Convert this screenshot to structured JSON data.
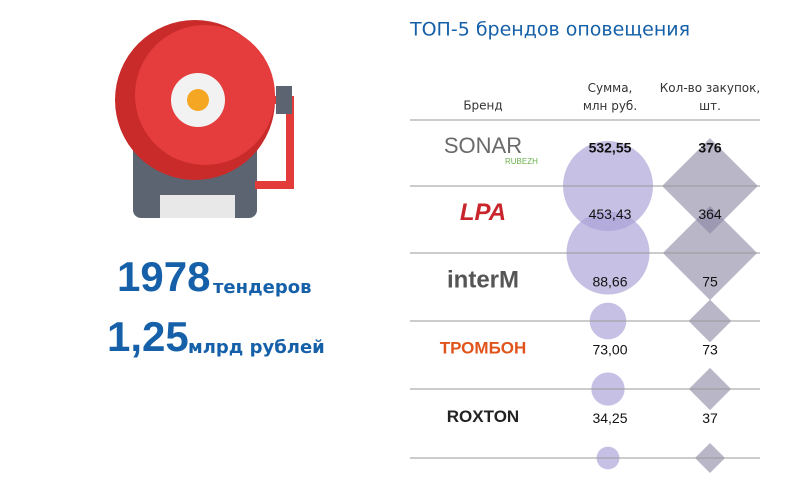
{
  "stats": {
    "tenders": {
      "number": "1978",
      "unit": "тендеров"
    },
    "amount": {
      "number": "1,25",
      "unit": "млрд рублей"
    }
  },
  "table": {
    "title": "ТОП-5 брендов оповещения",
    "headers": {
      "brand": "Бренд",
      "sum": "Сумма,\nмлн руб.",
      "count": "Кол-во закупок,\nшт."
    },
    "rows": [
      {
        "brand": "SONAR",
        "brand_sub": "RUBEZH",
        "sum": {
          "value": 532.55,
          "label": "532,55"
        },
        "count": 376
      },
      {
        "brand": "LPA",
        "sum": {
          "value": 453.43,
          "label": "453,43"
        },
        "count": 364
      },
      {
        "brand": "interM",
        "sum": {
          "value": 88.66,
          "label": "88,66"
        },
        "count": 75
      },
      {
        "brand": "ТРОМБОН",
        "sum": {
          "value": 73.0,
          "label": "73,00"
        },
        "count": 73
      },
      {
        "brand": "ROXTON",
        "sum": {
          "value": 34.25,
          "label": "34,25"
        },
        "count": 37
      }
    ]
  }
}
